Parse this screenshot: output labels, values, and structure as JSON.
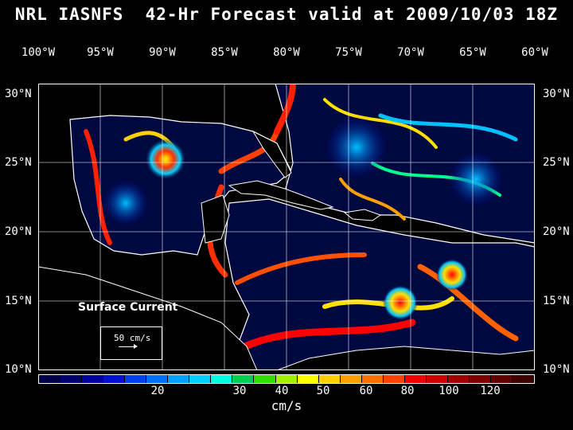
{
  "title": "NRL IASNFS  42-Hr Forecast valid at 2009/10/03 18Z",
  "longitudes": [
    "100°W",
    "95°W",
    "90°W",
    "85°W",
    "80°W",
    "75°W",
    "70°W",
    "65°W",
    "60°W"
  ],
  "latitudes": [
    "30°N",
    "25°N",
    "20°N",
    "15°N",
    "10°N"
  ],
  "surface_label": "Surface Current",
  "reference_vector": "50 cm/s",
  "colorbar": {
    "ticks": [
      "20",
      "30",
      "40",
      "50",
      "60",
      "80",
      "100",
      "120"
    ],
    "units": "cm/s",
    "colors": [
      "#00004a",
      "#00006e",
      "#0000a0",
      "#0010d0",
      "#0040f0",
      "#0070ff",
      "#00a0ff",
      "#00d0ff",
      "#00ffe0",
      "#00d050",
      "#30e000",
      "#a0f000",
      "#ffff00",
      "#ffd000",
      "#ffa000",
      "#ff7000",
      "#ff4000",
      "#f00000",
      "#d00000",
      "#a00000",
      "#800000",
      "#600000",
      "#400000"
    ]
  },
  "map_colors": {
    "land": "#000000",
    "ocean_calm": "#00003a",
    "coast": "#ffffff",
    "grid": "#ffffff"
  }
}
